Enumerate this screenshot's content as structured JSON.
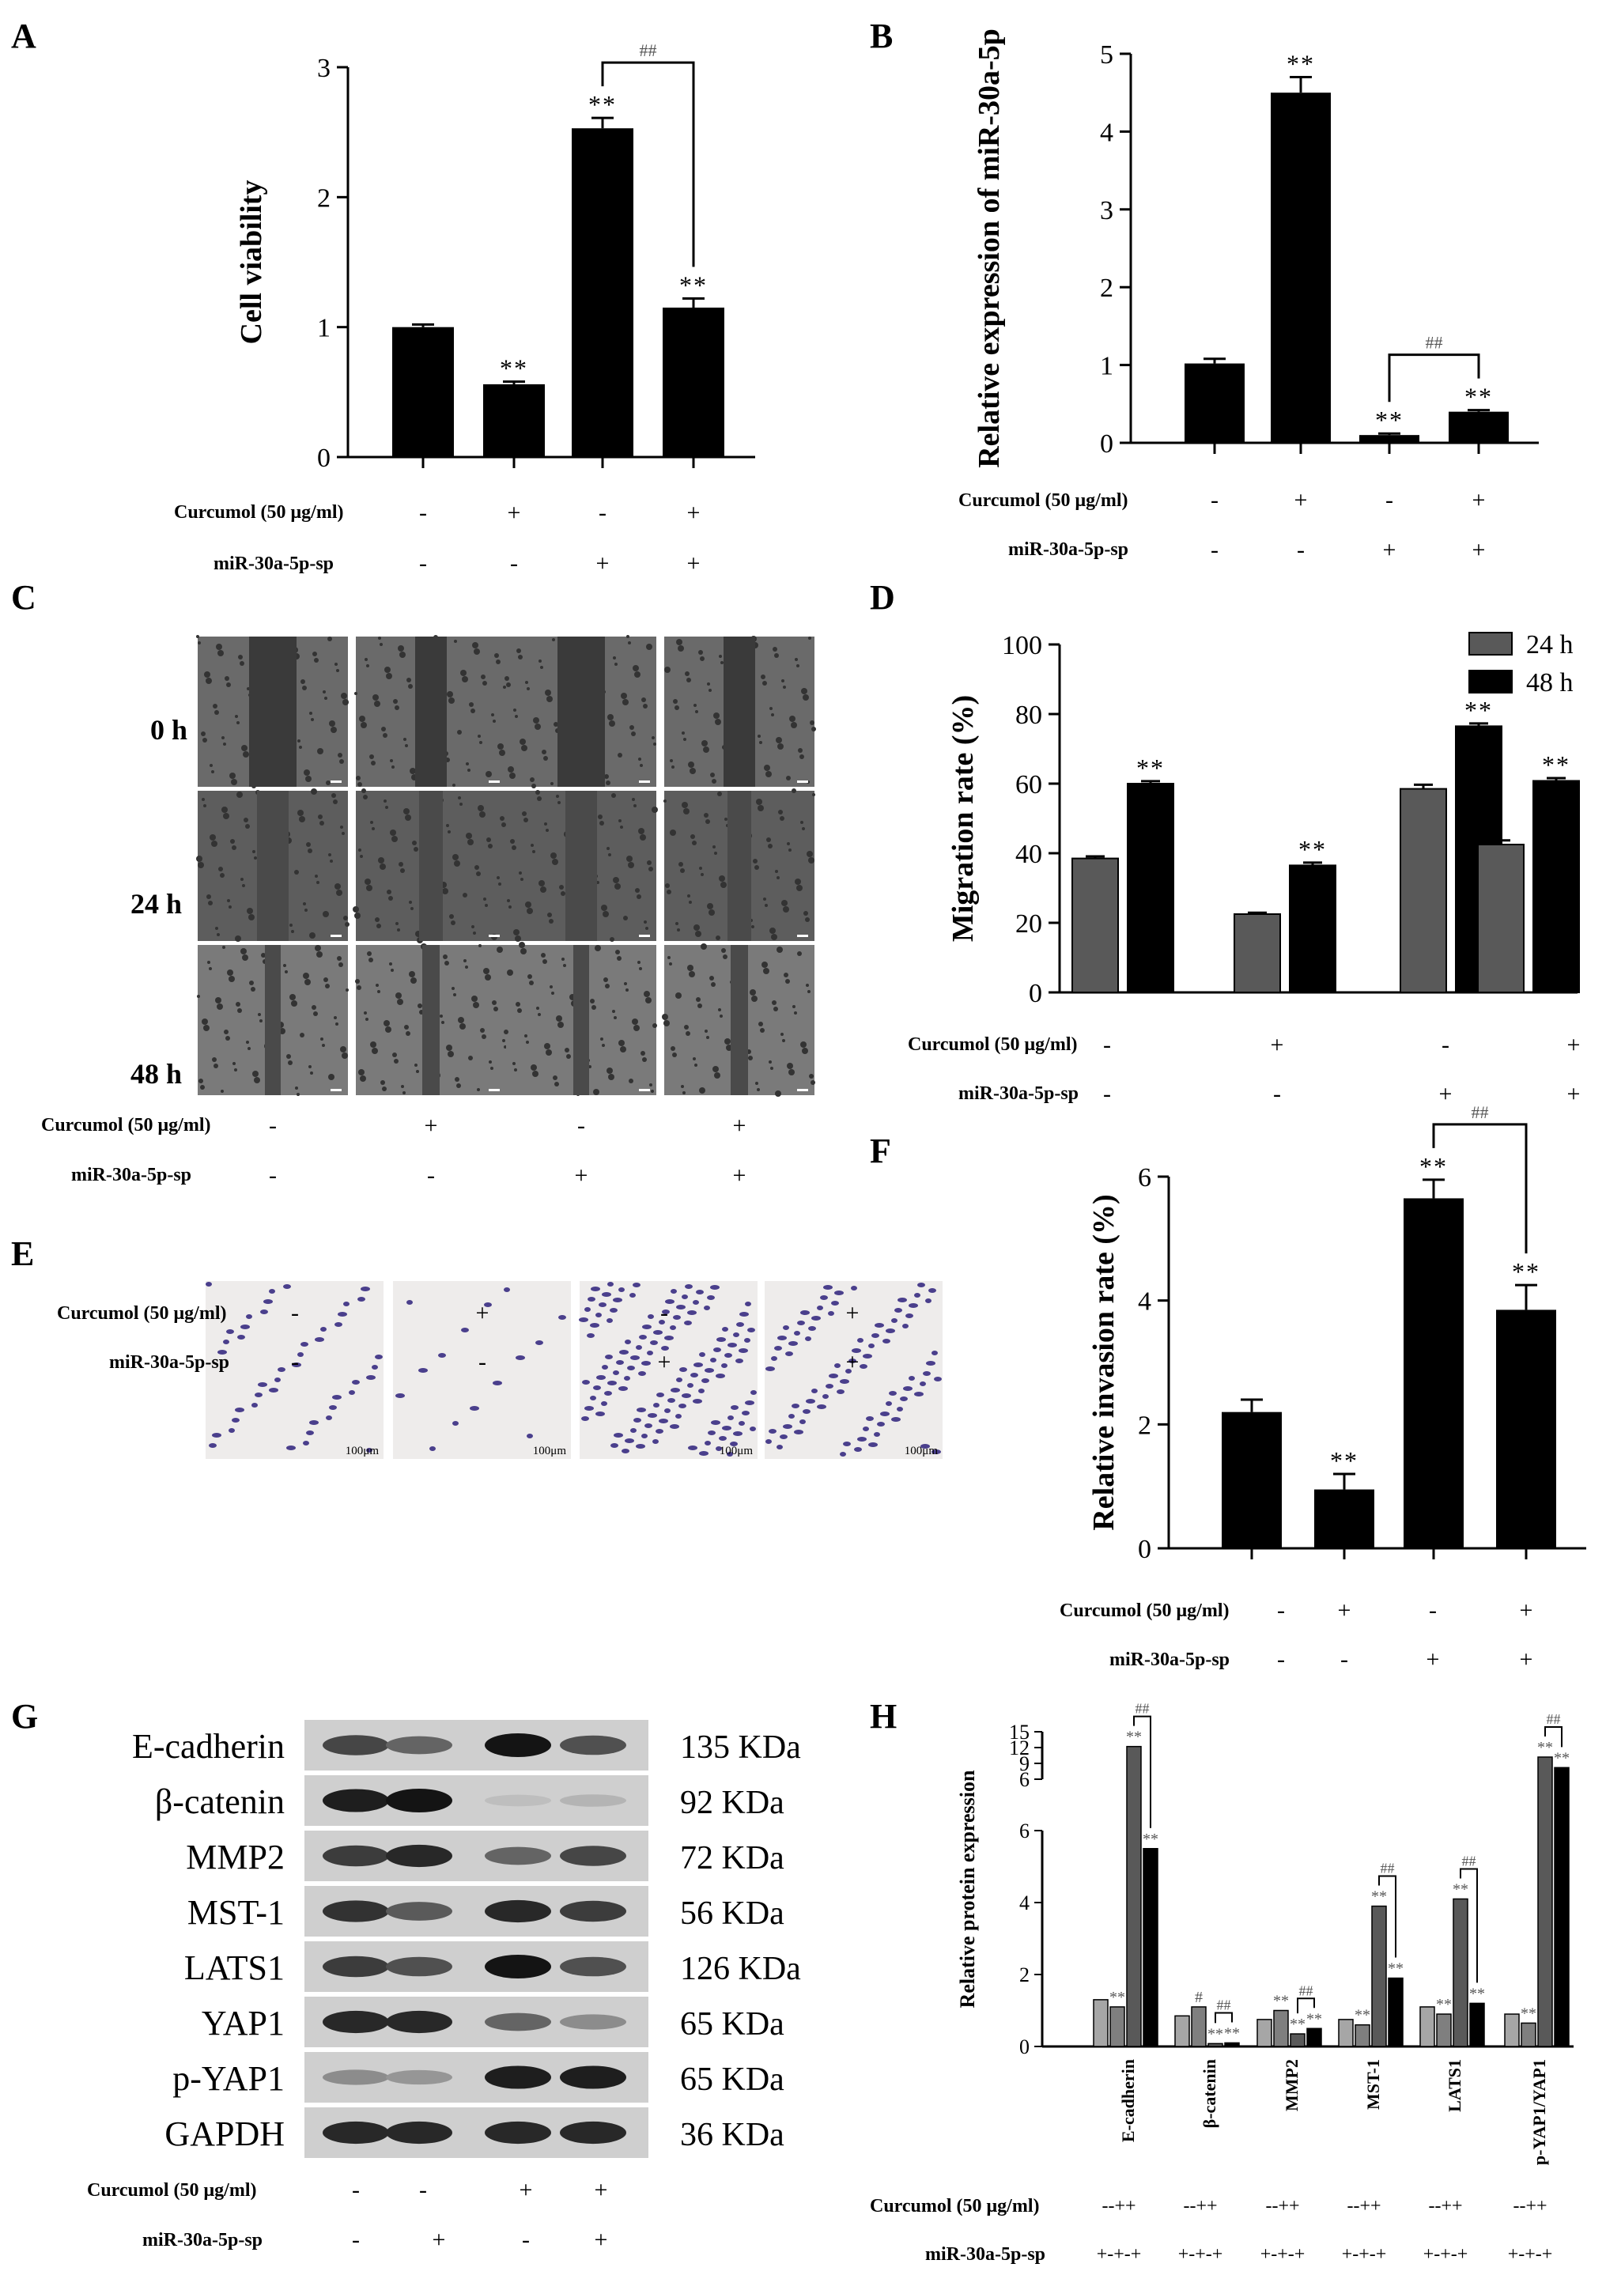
{
  "panels": {
    "A": {
      "letter": "A"
    },
    "B": {
      "letter": "B"
    },
    "C": {
      "letter": "C"
    },
    "D": {
      "letter": "D"
    },
    "E": {
      "letter": "E"
    },
    "F": {
      "letter": "F"
    },
    "G": {
      "letter": "G"
    },
    "H": {
      "letter": "H"
    }
  },
  "conditions": {
    "curcumol_label": "Curcumol (50 μg/ml)",
    "sponge_label": "miR-30a-5p-sp",
    "curcumol_signs": [
      "-",
      "+",
      "-",
      "+"
    ],
    "sponge_signs": [
      "-",
      "-",
      "+",
      "+"
    ]
  },
  "panel_G": {
    "curcumol_signs": [
      "-",
      "-",
      "+",
      "+"
    ],
    "sponge_signs": [
      "-",
      "+",
      "-",
      "+"
    ]
  },
  "panel_H_signs": {
    "curcumol": "--++",
    "sponge": "+-+-+"
  },
  "panel_C": {
    "row_labels": [
      "0 h",
      "24 h",
      "48 h"
    ]
  },
  "panel_E": {
    "scale_label": "100μm"
  },
  "western_blot": {
    "bands": [
      {
        "protein": "E-cadherin",
        "size": "135 KDa",
        "intensity": [
          0.75,
          0.6,
          1.0,
          0.7
        ]
      },
      {
        "protein": "β-catenin",
        "size": "92 KDa",
        "intensity": [
          0.95,
          1.0,
          0.15,
          0.2
        ]
      },
      {
        "protein": "MMP2",
        "size": "72 KDa",
        "intensity": [
          0.8,
          0.9,
          0.6,
          0.75
        ]
      },
      {
        "protein": "MST-1",
        "size": "56 KDa",
        "intensity": [
          0.85,
          0.65,
          0.9,
          0.8
        ]
      },
      {
        "protein": "LATS1",
        "size": "126 KDa",
        "intensity": [
          0.8,
          0.7,
          1.0,
          0.7
        ]
      },
      {
        "protein": "YAP1",
        "size": "65 KDa",
        "intensity": [
          0.9,
          0.9,
          0.6,
          0.4
        ]
      },
      {
        "protein": "p-YAP1",
        "size": "65 KDa",
        "intensity": [
          0.4,
          0.35,
          0.95,
          0.95
        ]
      },
      {
        "protein": "GAPDH",
        "size": "36 KDa",
        "intensity": [
          0.9,
          0.9,
          0.9,
          0.9
        ]
      }
    ]
  },
  "colors": {
    "bar_black": "#000000",
    "bar_gray": "#595959",
    "bar_light": "#a6a6a6",
    "bar_mid": "#7f7f7f"
  },
  "chart_data": [
    {
      "id": "A",
      "type": "bar",
      "ylabel": "Cell viability",
      "ylim": [
        0,
        3
      ],
      "yticks": [
        0,
        1,
        2,
        3
      ],
      "values": [
        1.0,
        0.56,
        2.53,
        1.15
      ],
      "errors": [
        0.02,
        0.02,
        0.08,
        0.07
      ],
      "significance": [
        "",
        "**",
        "**",
        "**"
      ],
      "bracket": {
        "from": 2,
        "to": 3,
        "label": "##"
      }
    },
    {
      "id": "B",
      "type": "bar",
      "ylabel": "Relative expression of miR-30a-5p",
      "ylim": [
        0,
        5
      ],
      "yticks": [
        0,
        1,
        2,
        3,
        4,
        5
      ],
      "values": [
        1.02,
        4.5,
        0.1,
        0.4
      ],
      "errors": [
        0.06,
        0.2,
        0.02,
        0.02
      ],
      "significance": [
        "",
        "**",
        "**",
        "**"
      ],
      "bracket": {
        "from": 2,
        "to": 3,
        "label": "##"
      }
    },
    {
      "id": "D",
      "type": "bar",
      "ylabel": "Migration rate (%)",
      "ylim": [
        0,
        100
      ],
      "yticks": [
        0,
        20,
        40,
        60,
        80,
        100
      ],
      "legend": "top-right",
      "series": [
        {
          "name": "24 h",
          "values": [
            38.5,
            22.5,
            58.5,
            42.5
          ],
          "errors": [
            0.6,
            0.4,
            1.2,
            1.2
          ],
          "significance": [
            "",
            "",
            "",
            ""
          ]
        },
        {
          "name": "48 h",
          "values": [
            60,
            36.5,
            76.5,
            60.8
          ],
          "errors": [
            0.7,
            0.8,
            0.8,
            0.8
          ],
          "significance": [
            "**",
            "**",
            "**",
            "**"
          ]
        }
      ]
    },
    {
      "id": "F",
      "type": "bar",
      "ylabel": "Relative invasion rate (%)",
      "ylim": [
        0,
        6
      ],
      "yticks": [
        0,
        2,
        4,
        6
      ],
      "values": [
        2.2,
        0.95,
        5.65,
        3.85
      ],
      "errors": [
        0.2,
        0.25,
        0.3,
        0.4
      ],
      "significance": [
        "",
        "**",
        "**",
        "**"
      ],
      "bracket": {
        "from": 2,
        "to": 3,
        "label": "##"
      }
    },
    {
      "id": "H",
      "type": "bar",
      "ylabel": "Relative protein expression",
      "yticks_lower": [
        0,
        2,
        4,
        6
      ],
      "yticks_upper": [
        6,
        9,
        12,
        15
      ],
      "categories": [
        "E-cadherin",
        "β-catenin",
        "MMP2",
        "MST-1",
        "LATS1",
        "p-YAP1/YAP1"
      ],
      "groups": [
        {
          "values": [
            1.3,
            1.1,
            12.2,
            5.5
          ],
          "significance": [
            "",
            "**",
            "**",
            "**"
          ],
          "bracket_label": "##"
        },
        {
          "values": [
            0.85,
            1.1,
            0.08,
            0.1
          ],
          "significance": [
            "",
            "#",
            "**",
            "**"
          ],
          "bracket_label": "##"
        },
        {
          "values": [
            0.75,
            1.0,
            0.35,
            0.5
          ],
          "significance": [
            "",
            "**",
            "**",
            "**"
          ],
          "bracket_label": "##"
        },
        {
          "values": [
            0.75,
            0.6,
            3.9,
            1.9
          ],
          "significance": [
            "",
            "**",
            "**",
            "**"
          ],
          "bracket_label": "##"
        },
        {
          "values": [
            1.1,
            0.9,
            4.1,
            1.2
          ],
          "significance": [
            "",
            "**",
            "**",
            "**"
          ],
          "bracket_label": "##"
        },
        {
          "values": [
            0.9,
            0.65,
            10.2,
            8.2
          ],
          "significance": [
            "",
            "**",
            "**",
            "**"
          ],
          "bracket_label": "##"
        }
      ]
    }
  ]
}
